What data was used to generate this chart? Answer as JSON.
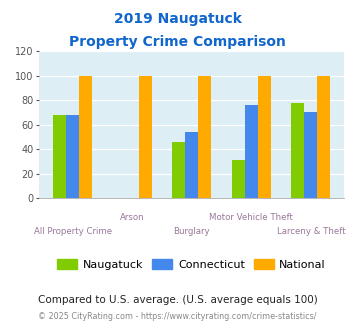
{
  "title_line1": "2019 Naugatuck",
  "title_line2": "Property Crime Comparison",
  "categories": [
    "All Property Crime",
    "Arson",
    "Burglary",
    "Motor Vehicle Theft",
    "Larceny & Theft"
  ],
  "naugatuck": [
    68,
    0,
    46,
    31,
    78
  ],
  "connecticut": [
    68,
    0,
    54,
    76,
    70
  ],
  "national": [
    100,
    100,
    100,
    100,
    100
  ],
  "color_naugatuck": "#80cc00",
  "color_connecticut": "#4488ee",
  "color_national": "#ffaa00",
  "ylim": [
    0,
    120
  ],
  "yticks": [
    0,
    20,
    40,
    60,
    80,
    100,
    120
  ],
  "bg_color": "#ddeef5",
  "title_color": "#1166cc",
  "xlabel_color": "#997799",
  "footnote1": "Compared to U.S. average. (U.S. average equals 100)",
  "footnote2": "© 2025 CityRating.com - https://www.cityrating.com/crime-statistics/",
  "footnote1_color": "#222222",
  "footnote2_color": "#888888",
  "stagger_up": [
    false,
    true,
    false,
    true,
    false
  ],
  "bar_width": 0.22
}
